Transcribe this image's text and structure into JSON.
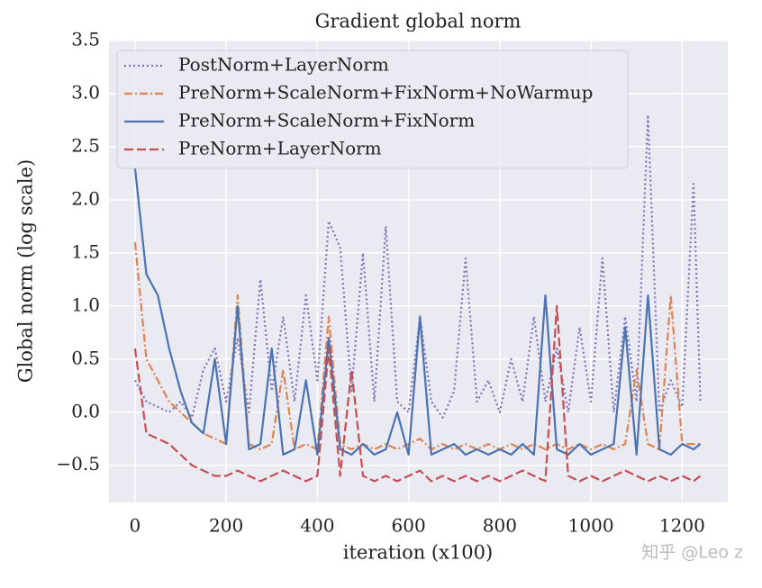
{
  "chart_data": {
    "type": "line",
    "title": "Gradient global norm",
    "x_label": "iteration (x100)",
    "y_label": "Global norm (log scale)",
    "x": [
      0,
      25,
      50,
      75,
      100,
      125,
      150,
      175,
      200,
      225,
      250,
      275,
      300,
      325,
      350,
      375,
      400,
      425,
      450,
      475,
      500,
      525,
      550,
      575,
      600,
      625,
      650,
      675,
      700,
      725,
      750,
      775,
      800,
      825,
      850,
      875,
      900,
      925,
      950,
      975,
      1000,
      1025,
      1050,
      1075,
      1100,
      1125,
      1150,
      1175,
      1200,
      1225,
      1240
    ],
    "series": [
      {
        "name": "PostNorm+LayerNorm",
        "color": "#8172b3",
        "linestyle": "dotted",
        "values": [
          0.3,
          0.1,
          0.05,
          0.0,
          0.1,
          -0.05,
          0.4,
          0.6,
          0.1,
          0.7,
          0.0,
          1.25,
          0.2,
          0.9,
          0.1,
          1.1,
          0.3,
          1.8,
          1.55,
          0.2,
          1.5,
          0.1,
          1.75,
          0.1,
          0.0,
          0.9,
          0.1,
          -0.05,
          0.2,
          1.45,
          0.1,
          0.3,
          0.0,
          0.5,
          0.1,
          0.9,
          0.1,
          0.6,
          0.0,
          0.8,
          0.1,
          1.45,
          0.0,
          0.9,
          0.1,
          2.8,
          0.0,
          0.3,
          0.05,
          2.15,
          0.1
        ]
      },
      {
        "name": "PreNorm+ScaleNorm+FixNorm+NoWarmup",
        "color": "#dd8452",
        "linestyle": "dashdot",
        "values": [
          1.6,
          0.5,
          0.3,
          0.1,
          0.0,
          -0.1,
          -0.2,
          -0.25,
          -0.3,
          1.1,
          -0.3,
          -0.35,
          -0.3,
          0.4,
          -0.35,
          -0.3,
          -0.35,
          0.9,
          -0.3,
          -0.35,
          -0.3,
          -0.35,
          -0.3,
          -0.35,
          -0.3,
          -0.25,
          -0.35,
          -0.3,
          -0.35,
          -0.3,
          -0.35,
          -0.3,
          -0.35,
          -0.3,
          -0.35,
          -0.3,
          -0.35,
          -0.3,
          -0.35,
          -0.3,
          -0.35,
          -0.3,
          -0.35,
          -0.3,
          0.4,
          -0.3,
          -0.35,
          1.1,
          -0.3,
          -0.3,
          -0.3
        ]
      },
      {
        "name": "PreNorm+ScaleNorm+FixNorm",
        "color": "#4c72b0",
        "linestyle": "solid",
        "values": [
          2.3,
          1.3,
          1.1,
          0.6,
          0.2,
          -0.1,
          -0.2,
          0.5,
          -0.3,
          1.0,
          -0.35,
          -0.3,
          0.6,
          -0.4,
          -0.35,
          0.3,
          -0.4,
          0.7,
          -0.35,
          -0.4,
          -0.3,
          -0.4,
          -0.35,
          0.0,
          -0.4,
          0.9,
          -0.4,
          -0.35,
          -0.3,
          -0.4,
          -0.35,
          -0.4,
          -0.35,
          -0.4,
          -0.3,
          -0.4,
          1.1,
          -0.35,
          -0.4,
          -0.3,
          -0.4,
          -0.35,
          -0.3,
          0.8,
          -0.4,
          1.1,
          -0.35,
          -0.4,
          -0.3,
          -0.35,
          -0.3
        ]
      },
      {
        "name": "PreNorm+LayerNorm",
        "color": "#c44e52",
        "linestyle": "dashed",
        "values": [
          0.6,
          -0.2,
          -0.25,
          -0.3,
          -0.4,
          -0.5,
          -0.55,
          -0.6,
          -0.6,
          -0.55,
          -0.6,
          -0.65,
          -0.6,
          -0.55,
          -0.6,
          -0.65,
          -0.6,
          0.6,
          -0.6,
          0.4,
          -0.6,
          -0.65,
          -0.6,
          -0.65,
          -0.6,
          -0.55,
          -0.65,
          -0.6,
          -0.65,
          -0.6,
          -0.65,
          -0.6,
          -0.65,
          -0.6,
          -0.55,
          -0.6,
          -0.65,
          1.0,
          -0.6,
          -0.65,
          -0.6,
          -0.65,
          -0.6,
          -0.55,
          -0.6,
          -0.65,
          -0.6,
          -0.65,
          -0.6,
          -0.65,
          -0.6
        ]
      }
    ],
    "xlim": [
      -57,
      1300
    ],
    "ylim": [
      -0.85,
      3.5
    ],
    "xticks": [
      0,
      200,
      400,
      600,
      800,
      1000,
      1200
    ],
    "yticks": [
      {
        "value": -0.5,
        "label": "−0.5"
      },
      {
        "value": 0,
        "label": "0.0"
      },
      0.5,
      {
        "value": 1,
        "label": "1.0"
      },
      1.5,
      {
        "value": 2,
        "label": "2.0"
      },
      2.5,
      {
        "value": 3,
        "label": "3.0"
      },
      3.5
    ],
    "grid": true,
    "legend": "upper left",
    "watermark": "知乎 @Leo z"
  }
}
